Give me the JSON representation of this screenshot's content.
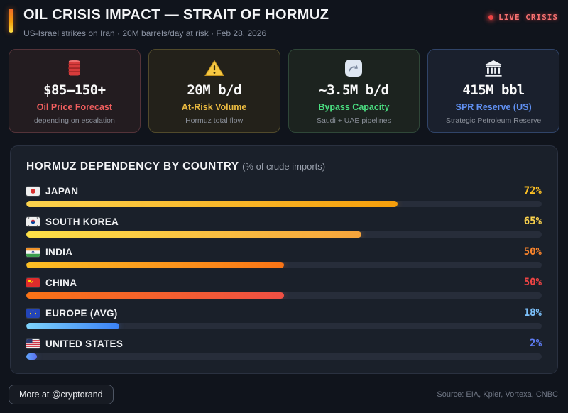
{
  "header": {
    "title": "OIL CRISIS IMPACT — STRAIT OF HORMUZ",
    "subtitle": "US-Israel strikes on Iran · 20M barrels/day at risk · Feb 28, 2026",
    "live_badge": "LIVE CRISIS",
    "live_color": "#ef4444",
    "accent_gradient": [
      "#ef6a2a",
      "#fde047"
    ]
  },
  "stat_cards": [
    {
      "icon": "oil-barrel-icon",
      "value": "$85—150+",
      "label": "Oil Price Forecast",
      "sublabel": "depending on escalation",
      "accent": "#f25f5f",
      "bg": "#231c20",
      "border": "#543339"
    },
    {
      "icon": "warning-triangle-icon",
      "value": "20M b/d",
      "label": "At-Risk Volume",
      "sublabel": "Hormuz total flow",
      "accent": "#e9b940",
      "bg": "#23211a",
      "border": "#514a2b"
    },
    {
      "icon": "bypass-route-icon",
      "value": "~3.5M b/d",
      "label": "Bypass Capacity",
      "sublabel": "Saudi + UAE pipelines",
      "accent": "#4ade80",
      "bg": "#1c231f",
      "border": "#2f4738"
    },
    {
      "icon": "bank-building-icon",
      "value": "415M bbl",
      "label": "SPR Reserve (US)",
      "sublabel": "Strategic Petroleum Reserve",
      "accent": "#6090f2",
      "bg": "#1a202d",
      "border": "#304468"
    }
  ],
  "chart_data": {
    "type": "bar",
    "orientation": "horizontal",
    "title": "HORMUZ DEPENDENCY BY COUNTRY",
    "subtitle": "(% of crude imports)",
    "unit": "%",
    "xlim": [
      0,
      100
    ],
    "grid": false,
    "categories": [
      "JAPAN",
      "SOUTH KOREA",
      "INDIA",
      "CHINA",
      "EUROPE (AVG)",
      "UNITED STATES"
    ],
    "values": [
      72,
      65,
      50,
      50,
      18,
      2
    ],
    "rows": [
      {
        "label": "JAPAN",
        "flag": "japan",
        "value": 72,
        "display": "72%",
        "bar_colors": [
          "#fcd34d",
          "#f59e0b"
        ],
        "pct_color": "#fbbf24"
      },
      {
        "label": "SOUTH KOREA",
        "flag": "south-korea",
        "value": 65,
        "display": "65%",
        "bar_colors": [
          "#fde047",
          "#f6a43c"
        ],
        "pct_color": "#fcd34d"
      },
      {
        "label": "INDIA",
        "flag": "india",
        "value": 50,
        "display": "50%",
        "bar_colors": [
          "#fbbf24",
          "#f97316"
        ],
        "pct_color": "#f9842c"
      },
      {
        "label": "CHINA",
        "flag": "china",
        "value": 50,
        "display": "50%",
        "bar_colors": [
          "#f97316",
          "#ef4f44"
        ],
        "pct_color": "#ef4444"
      },
      {
        "label": "EUROPE (AVG)",
        "flag": "european-union",
        "value": 18,
        "display": "18%",
        "bar_colors": [
          "#7dd3fc",
          "#3b82f6"
        ],
        "pct_color": "#7cc0fa"
      },
      {
        "label": "UNITED STATES",
        "flag": "united-states",
        "value": 2,
        "display": "2%",
        "bar_colors": [
          "#60a5fa",
          "#5b6ef0"
        ],
        "pct_color": "#5f7df5"
      }
    ]
  },
  "footer": {
    "cta": "More at @cryptorand",
    "source": "Source: EIA, Kpler, Vortexa, CNBC"
  }
}
